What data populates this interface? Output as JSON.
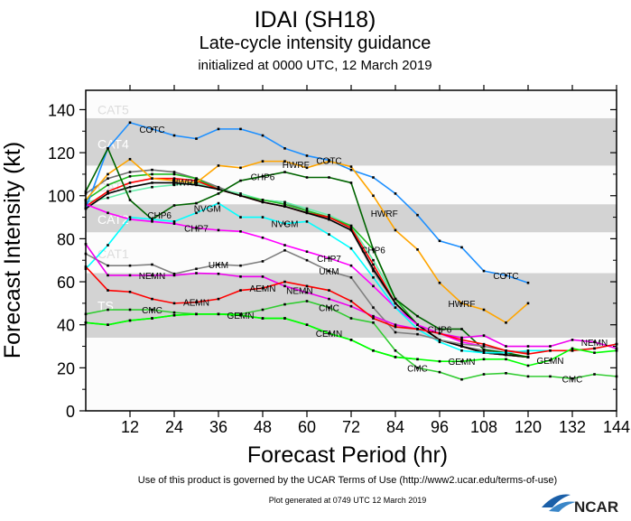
{
  "header": {
    "title": "IDAI (SH18)",
    "subtitle": "Late-cycle intensity guidance",
    "init": "initialized at 0000 UTC, 12 March 2019"
  },
  "footer": {
    "terms": "Use of this product is governed by the UCAR Terms of Use (http://www2.ucar.edu/terms-of-use)",
    "generated": "Plot generated at 0749 UTC  12 March 2019",
    "logo": "NCAR"
  },
  "chart_data": {
    "type": "line",
    "title": "IDAI (SH18)",
    "xlabel": "Forecast Period (hr)",
    "ylabel": "Forecast Intensity (kt)",
    "xlim": [
      0,
      144
    ],
    "ylim": [
      0,
      149
    ],
    "xticks": [
      12,
      24,
      36,
      48,
      60,
      72,
      84,
      96,
      108,
      120,
      132,
      144
    ],
    "yticks": [
      0,
      20,
      40,
      60,
      80,
      100,
      120,
      140
    ],
    "grid": false,
    "categories_bands": [
      {
        "label": "CAT5",
        "min": 137,
        "max": 149,
        "shaded": false
      },
      {
        "label": "CAT4",
        "min": 114,
        "max": 136,
        "shaded": true
      },
      {
        "label": "CAT3",
        "min": 96,
        "max": 113,
        "shaded": false
      },
      {
        "label": "CAT2",
        "min": 83,
        "max": 96,
        "shaded": true
      },
      {
        "label": "CAT1",
        "min": 64,
        "max": 83,
        "shaded": false
      },
      {
        "label": "TS",
        "min": 34,
        "max": 64,
        "shaded": true
      }
    ],
    "band_color": "#d3d3d3",
    "x": [
      0,
      6,
      12,
      18,
      24,
      30,
      36,
      42,
      48,
      54,
      60,
      66,
      72,
      78,
      84,
      90,
      96,
      102,
      108,
      114,
      120,
      126,
      132,
      138,
      144
    ],
    "series": [
      {
        "name": "",
        "color": "#707070",
        "values": [
          101,
          108,
          111,
          112,
          111,
          108,
          104,
          100,
          98,
          97,
          93,
          89,
          84,
          65,
          50,
          40,
          33,
          30,
          28,
          26,
          25,
          null,
          null,
          null,
          null
        ]
      },
      {
        "name": "",
        "color": "#66eeaa",
        "values": [
          97,
          99,
          102,
          104,
          105,
          106,
          103,
          101,
          98,
          97,
          94,
          91,
          86,
          70,
          52,
          40,
          33,
          30,
          27,
          26,
          25,
          null,
          null,
          null,
          null
        ]
      },
      {
        "name": "",
        "color": "#22bb22",
        "values": [
          98,
          105,
          109,
          110,
          110,
          108,
          103,
          100,
          98,
          96,
          93,
          90,
          86,
          75,
          52,
          40,
          33,
          30,
          27,
          26,
          25,
          null,
          null,
          null,
          null
        ]
      },
      {
        "name": "",
        "color": "#ff0000",
        "values": [
          95,
          102,
          106,
          108,
          108,
          107,
          103,
          100,
          97,
          95,
          92,
          90,
          85,
          68,
          50,
          40,
          33,
          30,
          27,
          26,
          25,
          null,
          null,
          null,
          null
        ]
      },
      {
        "name": "",
        "color": "#000000",
        "values": [
          94,
          101,
          104,
          106,
          106,
          105,
          103,
          100,
          97,
          95,
          92,
          89,
          84,
          66,
          50,
          40,
          33,
          30,
          27,
          26,
          25,
          null,
          null,
          null,
          null
        ]
      },
      {
        "name": "COTC",
        "color": "#1e90ff",
        "values": [
          94,
          122,
          134,
          131,
          128,
          126.5,
          131,
          131,
          128,
          122,
          118.6,
          116.5,
          112,
          108.5,
          101,
          91,
          79,
          76,
          65,
          63,
          59.5,
          null,
          null,
          null,
          null
        ]
      },
      {
        "name": "HWRF",
        "color": "#ffa500",
        "values": [
          98,
          110,
          117,
          108,
          107,
          106,
          114,
          113,
          116,
          116,
          113,
          116,
          113.5,
          100,
          84,
          75,
          59.5,
          50,
          47,
          41,
          50,
          null,
          null,
          null,
          null
        ]
      },
      {
        "name": "CHP6",
        "color": "#006400",
        "values": [
          102,
          122,
          98,
          89,
          95.5,
          96.5,
          101,
          107,
          109,
          111,
          108.5,
          108.5,
          106,
          75,
          52,
          44,
          38,
          38,
          28.5,
          27,
          25,
          null,
          null,
          null,
          null
        ]
      },
      {
        "name": "CHP7",
        "color": "#ff00ff",
        "values": [
          96,
          92,
          89,
          88,
          87,
          85,
          84,
          83.4,
          80.5,
          77,
          74,
          71,
          67.5,
          58,
          48,
          40,
          36,
          32,
          30,
          28,
          27,
          null,
          null,
          null,
          null
        ]
      },
      {
        "name": "NVGM",
        "color": "#00ffff",
        "values": [
          66,
          77,
          90,
          89,
          88,
          92,
          96.5,
          90,
          90,
          87,
          88,
          82,
          75.5,
          62,
          48,
          38,
          32,
          28,
          27,
          27,
          28,
          28,
          28,
          29,
          31
        ]
      },
      {
        "name": "UKM",
        "color": "#808080",
        "values": [
          73,
          67.5,
          67.5,
          68,
          63.7,
          66,
          68,
          67.5,
          69.5,
          74.6,
          70,
          65,
          62,
          48,
          36.5,
          35.6,
          33,
          31,
          30,
          28,
          27,
          null,
          null,
          null,
          null
        ]
      },
      {
        "name": "NEMN",
        "color": "#ee00ee",
        "values": [
          77.5,
          63,
          63,
          63,
          63,
          64,
          63.7,
          62.4,
          62.4,
          58,
          55,
          52,
          48.6,
          44,
          40,
          38,
          36,
          34,
          35,
          30,
          30,
          30,
          33,
          32,
          29
        ]
      },
      {
        "name": "AEMN",
        "color": "#ff0000",
        "values": [
          67,
          56,
          55.3,
          52,
          50,
          50.5,
          52,
          56,
          57,
          60,
          58,
          56,
          51,
          43,
          39,
          38,
          36,
          33,
          31,
          28,
          26.4,
          28,
          28,
          29,
          31
        ]
      },
      {
        "name": "CMC",
        "color": "#33cc33",
        "values": [
          45,
          47,
          47,
          47,
          45.7,
          45,
          45,
          45,
          47,
          49.5,
          51,
          48,
          43,
          41,
          28,
          20,
          18,
          14.6,
          17,
          17.5,
          16,
          16,
          15,
          17,
          16
        ]
      },
      {
        "name": "CEMN",
        "color": "#00ff00",
        "values": [
          41,
          40,
          42,
          43,
          44.4,
          45,
          45,
          44.4,
          43,
          43,
          40,
          36,
          33,
          28,
          25,
          24,
          null,
          null,
          null,
          null,
          null,
          null,
          null,
          null,
          null
        ]
      },
      {
        "name": "GEMN",
        "color": "#00ff00",
        "values": [
          41,
          40,
          42,
          43,
          44.4,
          45,
          45,
          44.4,
          43,
          43,
          40,
          36,
          33,
          28,
          25,
          24,
          23,
          23,
          24,
          24,
          21,
          23.5,
          29,
          27,
          28
        ]
      }
    ]
  }
}
